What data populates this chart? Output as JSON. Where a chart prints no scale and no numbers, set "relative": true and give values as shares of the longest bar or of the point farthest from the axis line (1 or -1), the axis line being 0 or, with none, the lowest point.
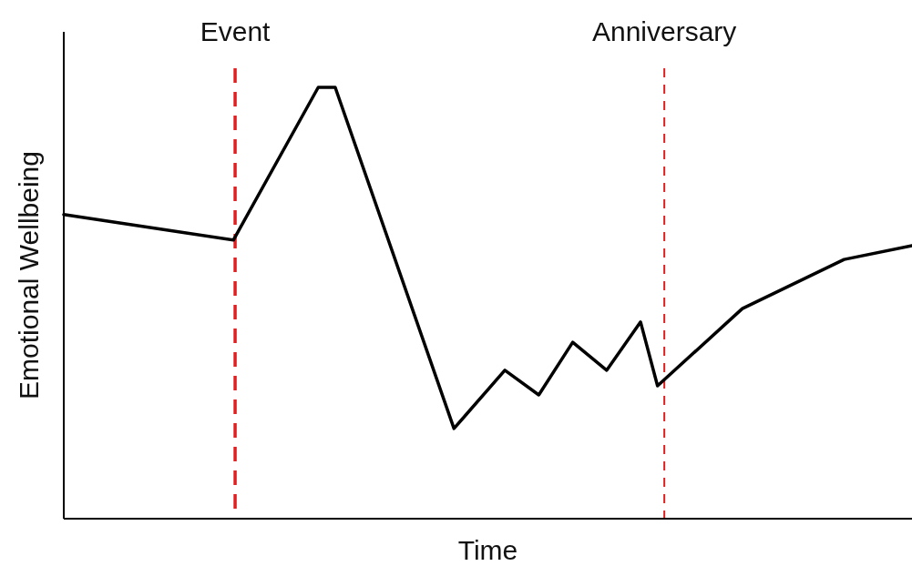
{
  "chart_data": {
    "type": "line",
    "relative": true,
    "xlabel": "Time",
    "ylabel": "Emotional Wellbeing",
    "line_style": "solid",
    "categories": [
      null,
      null,
      null,
      null,
      null,
      null,
      null,
      null,
      null,
      null,
      null,
      null,
      null,
      null,
      null,
      null,
      null,
      null,
      null,
      null,
      null,
      null,
      null,
      null,
      null,
      null,
      null,
      null,
      null,
      null,
      null,
      null,
      null,
      null,
      null,
      null,
      null,
      null,
      null,
      null,
      null,
      null,
      null,
      null,
      null,
      null,
      null,
      null,
      null,
      null,
      null
    ],
    "series": [
      {
        "color": "#000000",
        "values": [
          0.705,
          null,
          null,
          null,
          null,
          null,
          null,
          null,
          null,
          null,
          0.646,
          null,
          null,
          null,
          null,
          1,
          1,
          null,
          null,
          null,
          null,
          null,
          null,
          0.209,
          null,
          null,
          0.344,
          null,
          0.287,
          null,
          0.409,
          null,
          0.344,
          null,
          0.456,
          0.308,
          null,
          null,
          null,
          null,
          0.487,
          null,
          null,
          null,
          null,
          null,
          0.601,
          null,
          null,
          null,
          0.633
        ]
      }
    ],
    "annotations": [
      "Event",
      "Anniversary"
    ]
  }
}
